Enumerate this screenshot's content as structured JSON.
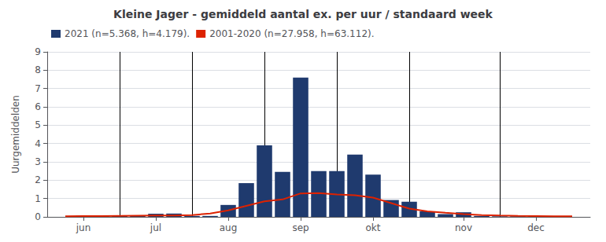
{
  "chart_data": {
    "type": "bar",
    "title": "Kleine Jager - gemiddeld aantal ex. per uur / standaard week",
    "ylabel": "Uurgemiddelden",
    "xlim": [
      21,
      51
    ],
    "xticks": [
      {
        "value": 23,
        "label": "jun"
      },
      {
        "value": 27,
        "label": "jul"
      },
      {
        "value": 31,
        "label": "aug"
      },
      {
        "value": 35,
        "label": "sep"
      },
      {
        "value": 39,
        "label": "okt"
      },
      {
        "value": 44,
        "label": "nov"
      },
      {
        "value": 48,
        "label": "dec"
      }
    ],
    "ylim": [
      0,
      9
    ],
    "yticks": [
      0,
      1,
      2,
      3,
      4,
      5,
      6,
      7,
      8,
      9
    ],
    "grid": true,
    "legend": "upper left",
    "vlines": [
      25,
      29,
      33,
      37,
      41,
      46
    ],
    "series": [
      {
        "name": "2021 (n=5.368, h=4.179).",
        "type": "bar",
        "color": "#1f3a6e",
        "x": [
          23,
          24,
          25,
          26,
          27,
          28,
          29,
          30,
          31,
          32,
          33,
          34,
          35,
          36,
          37,
          38,
          39,
          40,
          41,
          42,
          43,
          44,
          45,
          46,
          47,
          48
        ],
        "values": [
          0.05,
          0.03,
          0.05,
          0.05,
          0.17,
          0.18,
          0.05,
          0.05,
          0.65,
          1.84,
          3.9,
          2.45,
          7.6,
          2.5,
          2.5,
          3.4,
          2.3,
          0.92,
          0.82,
          0.3,
          0.15,
          0.25,
          0.05,
          0.03,
          0.03,
          0.03
        ]
      },
      {
        "name": "2001-2020 (n=27.958, h=63.112).",
        "type": "line",
        "color": "#dd2200",
        "x": [
          22,
          23,
          24,
          25,
          26,
          27,
          28,
          29,
          30,
          31,
          32,
          33,
          34,
          35,
          36,
          37,
          38,
          39,
          40,
          41,
          42,
          43,
          44,
          45,
          46,
          47,
          48,
          49,
          50
        ],
        "values": [
          0.03,
          0.04,
          0.04,
          0.05,
          0.06,
          0.07,
          0.08,
          0.1,
          0.18,
          0.35,
          0.6,
          0.85,
          0.95,
          1.28,
          1.3,
          1.22,
          1.18,
          1.05,
          0.75,
          0.45,
          0.3,
          0.22,
          0.15,
          0.1,
          0.07,
          0.05,
          0.04,
          0.03,
          0.03
        ]
      }
    ]
  }
}
